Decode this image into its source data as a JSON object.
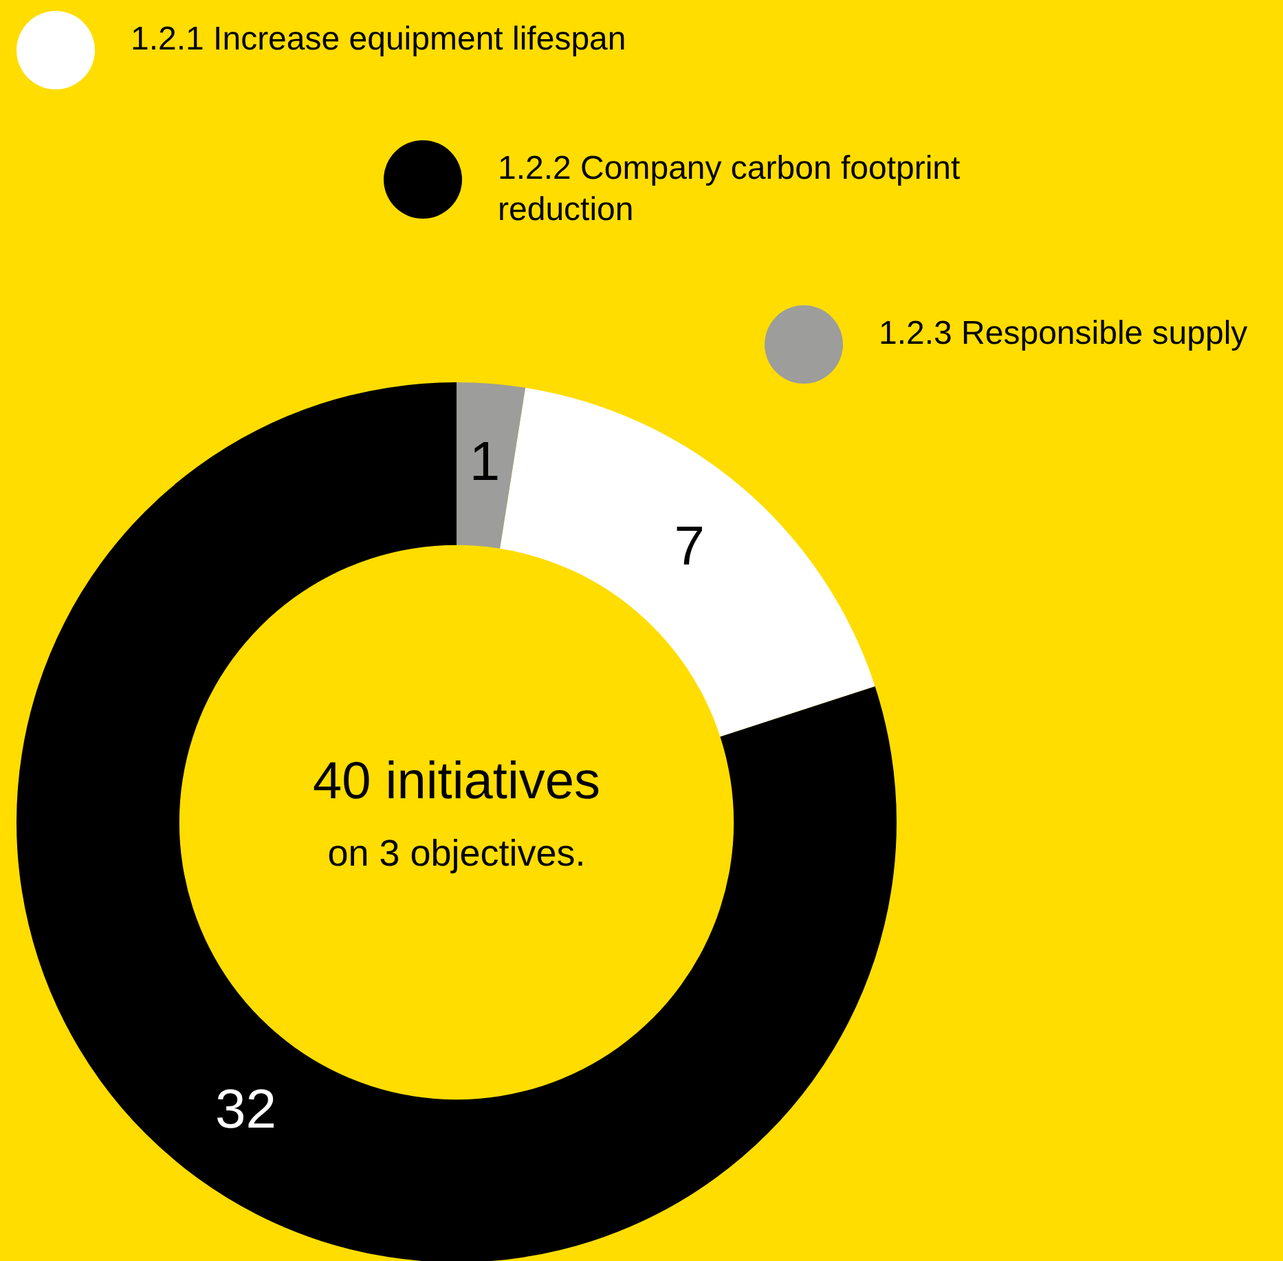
{
  "chart_data": {
    "type": "donut",
    "title": "40 initiatives",
    "subtitle": "on 3 objectives.",
    "categories": [
      "1.2.1 Increase equipment lifespan",
      "1.2.2 Company carbon footprint reduction",
      "1.2.3 Responsible supply"
    ],
    "values": [
      7,
      32,
      1
    ],
    "colors": [
      "#ffffff",
      "#000000",
      "#9d9d9b"
    ],
    "data_labels": true,
    "legend": "top"
  }
}
